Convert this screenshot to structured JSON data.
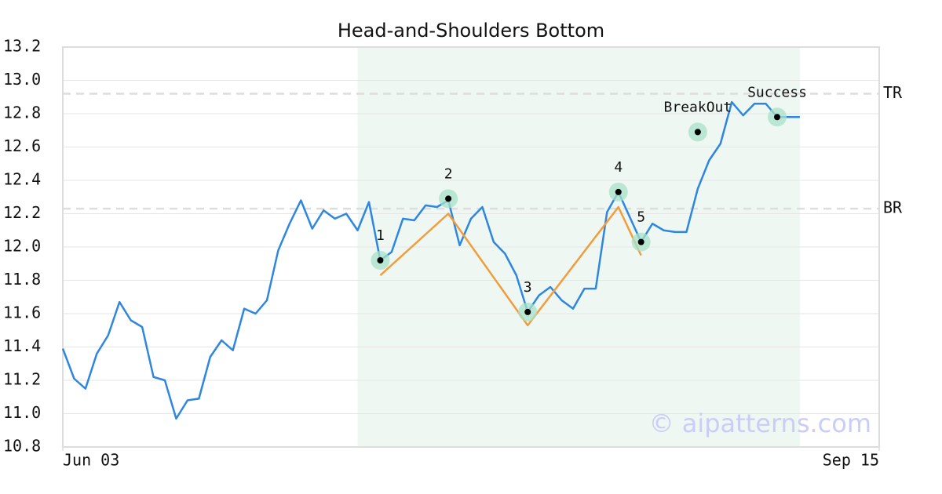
{
  "chart_data": {
    "type": "line",
    "title": "Head-and-Shoulders Bottom",
    "watermark": "© aipatterns.com",
    "xlim": [
      0,
      72
    ],
    "xticks": [
      {
        "value": 0,
        "label": "Jun 03"
      },
      {
        "value": 72,
        "label": "Sep 15"
      }
    ],
    "ylim": [
      10.8,
      13.2
    ],
    "yticks": [
      10.8,
      {
        "value": 11,
        "label": "11.0"
      },
      11.2,
      11.4,
      11.6,
      11.8,
      {
        "value": 12,
        "label": "12.0"
      },
      12.2,
      12.4,
      12.6,
      12.8,
      {
        "value": 13,
        "label": "13.0"
      },
      13.2
    ],
    "grid": true,
    "highlight": [
      26,
      65
    ],
    "series": [
      {
        "color": "#2e86de",
        "x": [
          0,
          1,
          2,
          3,
          4,
          5,
          6,
          7,
          8,
          9,
          10,
          11,
          12,
          13,
          14,
          15,
          16,
          17,
          18,
          19,
          20,
          21,
          22,
          23,
          24,
          25,
          26,
          27,
          28,
          29,
          30,
          31,
          32,
          33,
          34,
          35,
          36,
          37,
          38,
          39,
          40,
          41,
          42,
          43,
          44,
          45,
          46,
          47,
          48,
          49,
          50,
          51,
          52,
          53,
          54,
          55,
          56,
          57,
          58,
          59,
          60,
          61,
          62,
          63,
          64,
          65
        ],
        "values": [
          11.39,
          11.21,
          11.15,
          11.36,
          11.47,
          11.67,
          11.56,
          11.52,
          11.22,
          11.2,
          10.97,
          11.08,
          11.09,
          11.34,
          11.44,
          11.38,
          11.63,
          11.6,
          11.68,
          11.98,
          12.14,
          12.28,
          12.11,
          12.22,
          12.17,
          12.2,
          12.1,
          12.27,
          11.92,
          11.97,
          12.17,
          12.16,
          12.25,
          12.24,
          12.28,
          12.01,
          12.17,
          12.24,
          12.03,
          11.96,
          11.83,
          11.61,
          11.71,
          11.76,
          11.68,
          11.63,
          11.75,
          11.75,
          12.21,
          12.33,
          12.18,
          12.03,
          12.14,
          12.1,
          12.09,
          12.09,
          12.35,
          12.52,
          12.62,
          12.87,
          12.79,
          12.86,
          12.86,
          12.78,
          12.78,
          12.78
        ]
      },
      {
        "color": "#f39c3c",
        "x": [
          28,
          34,
          41,
          49,
          51
        ],
        "values": [
          11.83,
          12.2,
          11.53,
          12.24,
          11.95
        ]
      }
    ],
    "markers": [
      {
        "label": "1",
        "x": 28,
        "y": 11.92
      },
      {
        "label": "2",
        "x": 34,
        "y": 12.29
      },
      {
        "label": "3",
        "x": 41,
        "y": 11.61
      },
      {
        "label": "4",
        "x": 49,
        "y": 12.33
      },
      {
        "label": "5",
        "x": 51,
        "y": 12.03
      },
      {
        "label": "BreakOut",
        "x": 56,
        "y": 12.69
      },
      {
        "label": "Success",
        "x": 63,
        "y": 12.78
      }
    ],
    "ref_lines": [
      {
        "label": "TR",
        "value": 12.92
      },
      {
        "label": "BR",
        "value": 12.23
      }
    ]
  }
}
